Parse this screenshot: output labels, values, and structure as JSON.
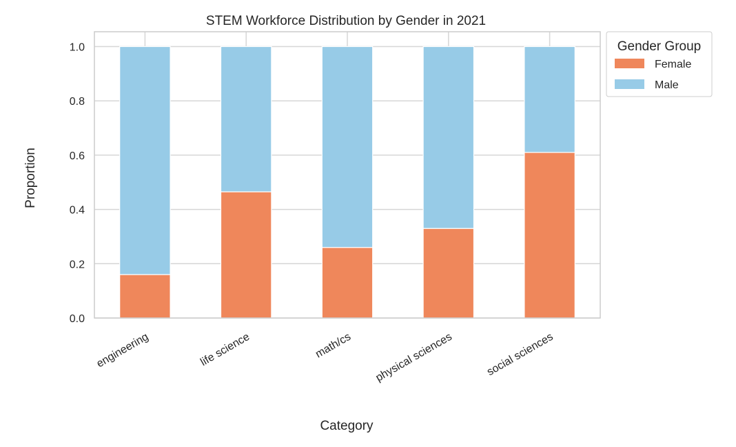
{
  "chart_data": {
    "type": "bar",
    "stacked": true,
    "title": "STEM Workforce Distribution by Gender in 2021",
    "xlabel": "Category",
    "ylabel": "Proportion",
    "ylim": [
      0,
      1.05
    ],
    "yticks": [
      "0.0",
      "0.2",
      "0.4",
      "0.6",
      "0.8",
      "1.0"
    ],
    "grid": true,
    "legend_title": "Gender Group",
    "legend_position": "outside-top-right",
    "categories": [
      "engineering",
      "life science",
      "math/cs",
      "physical sciences",
      "social sciences"
    ],
    "series": [
      {
        "name": "Female",
        "color": "#ef875b",
        "values": [
          0.16,
          0.465,
          0.26,
          0.33,
          0.61
        ]
      },
      {
        "name": "Male",
        "color": "#97cbe7",
        "values": [
          0.84,
          0.535,
          0.74,
          0.67,
          0.39
        ]
      }
    ]
  }
}
